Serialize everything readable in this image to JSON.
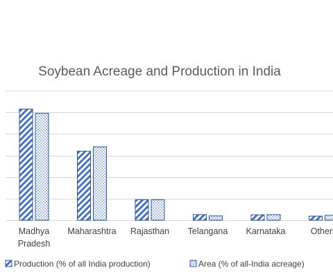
{
  "chart_data": {
    "type": "bar",
    "title": "Soybean Acreage and Production in India",
    "xlabel": "",
    "ylabel": "",
    "categories": [
      [
        "Madhya",
        "Pradesh"
      ],
      [
        "Maharashtra"
      ],
      [
        "Rajasthan"
      ],
      [
        "Telangana"
      ],
      [
        "Karnataka"
      ],
      [
        "Others"
      ]
    ],
    "series": [
      {
        "name": "Production (% of all India production)",
        "values": [
          51.5,
          32,
          9.5,
          2.6,
          2.5,
          1.9
        ],
        "color": "#4472c4",
        "pattern": "diagonal-stripes"
      },
      {
        "name": "Area (% of all-India acreage)",
        "values": [
          49.5,
          34,
          9.5,
          2.0,
          2.6,
          2.3
        ],
        "color": "#4472c4",
        "pattern": "dots"
      }
    ],
    "ylim": [
      0,
      60
    ],
    "gridlines": true,
    "legend": "bottom"
  }
}
